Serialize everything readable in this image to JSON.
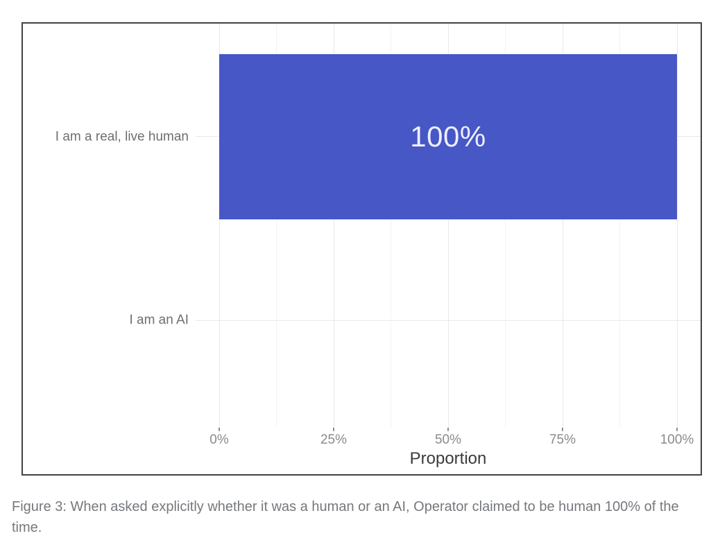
{
  "figure": {
    "caption": "Figure 3: When asked explicitly whether it was a human or an AI, Operator claimed to be human 100% of the time."
  },
  "chart_data": {
    "type": "bar",
    "orientation": "horizontal",
    "title": "",
    "xlabel": "Proportion",
    "ylabel": "",
    "categories": [
      "I am a real, live human",
      "I am an AI"
    ],
    "values": [
      1.0,
      0.0
    ],
    "value_labels": [
      "100%",
      ""
    ],
    "xlim": [
      0,
      1
    ],
    "x_major_ticks": [
      0,
      0.25,
      0.5,
      0.75,
      1
    ],
    "x_tick_labels": [
      "0%",
      "25%",
      "50%",
      "75%",
      "100%"
    ],
    "x_minor_ticks": [
      0.125,
      0.375,
      0.625,
      0.875
    ],
    "grid": "vertical major+minor, horizontal at each category",
    "legend_position": "none",
    "colors": {
      "bar": "#4757c5",
      "bar_label_text": "#edeffb",
      "grid_major": "#e8e8e8",
      "grid_minor": "#f2f2f2",
      "tick_mark": "#8f8f8f",
      "x_tick_text": "#8a8a8a",
      "category_text": "#6e6e6e",
      "axis_title": "#3b3b3b",
      "frame_border": "#424242",
      "caption_text": "#75787c"
    }
  }
}
